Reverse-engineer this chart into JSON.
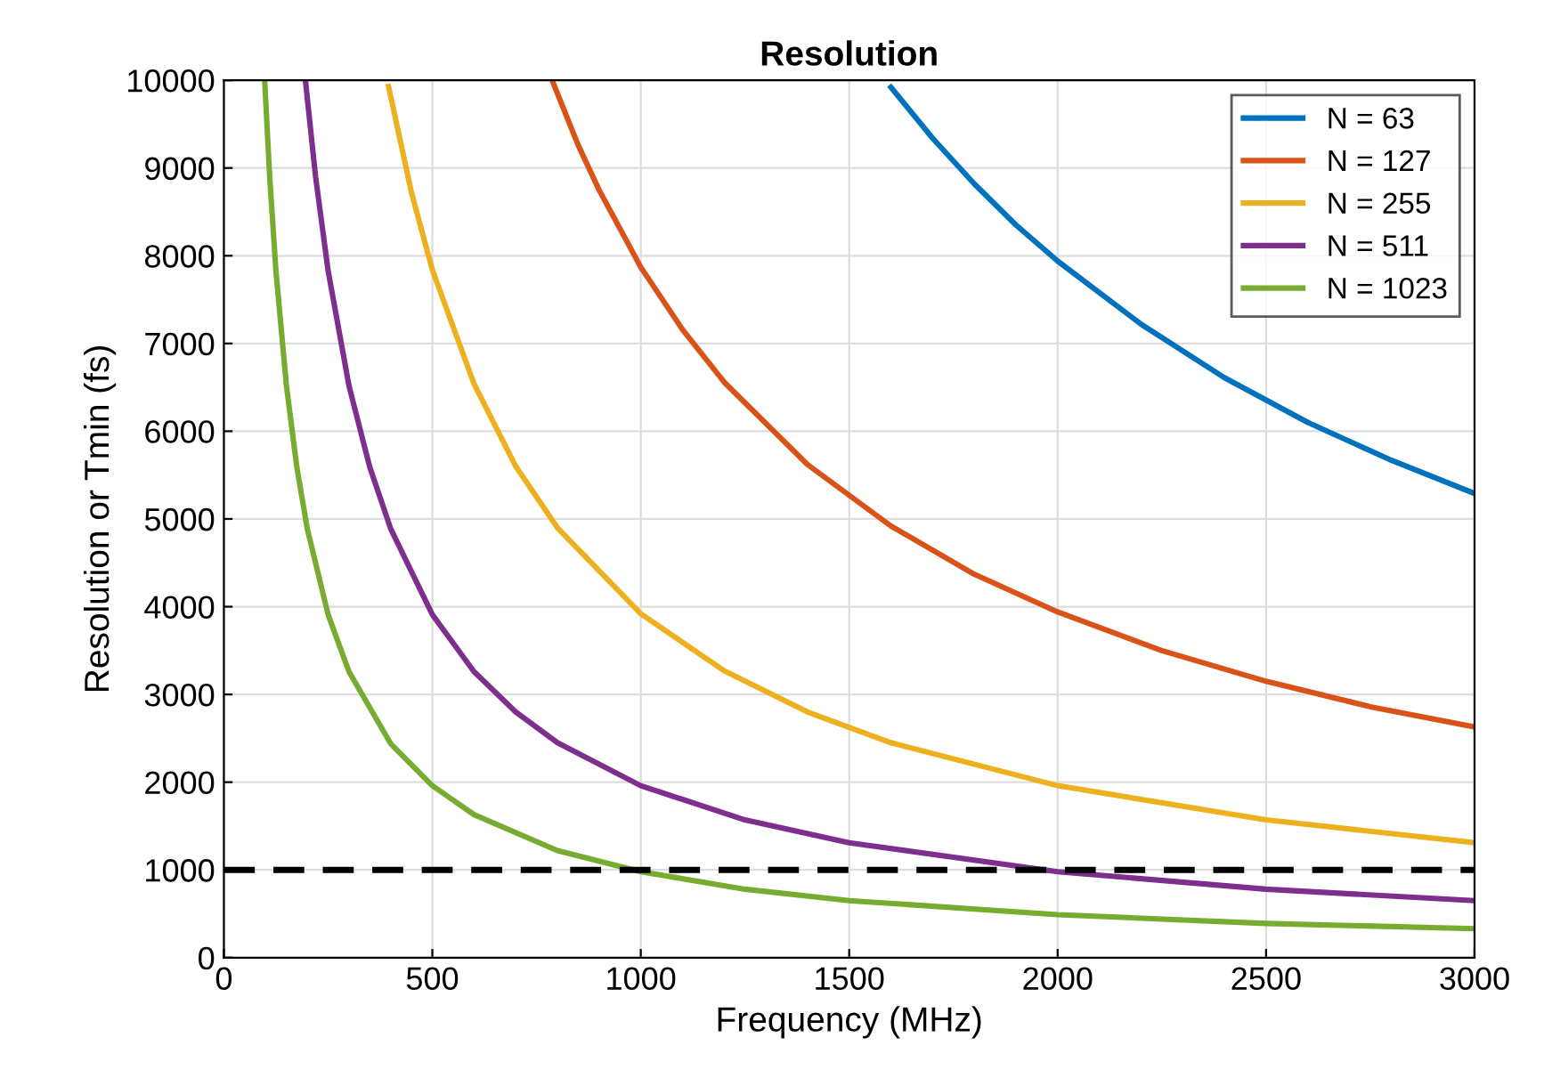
{
  "chart_data": {
    "type": "line",
    "title": "Resolution",
    "xlabel": "Frequency (MHz)",
    "ylabel": "Resolution or Tmin (fs)",
    "xlim": [
      0,
      3000
    ],
    "ylim": [
      0,
      10000
    ],
    "xticks": [
      0,
      500,
      1000,
      1500,
      2000,
      2500,
      3000
    ],
    "yticks": [
      0,
      1000,
      2000,
      3000,
      4000,
      5000,
      6000,
      7000,
      8000,
      9000,
      10000
    ],
    "grid": true,
    "legend": "top right",
    "marker": "none",
    "line_style": "solid",
    "series": [
      {
        "name": "N = 63",
        "color": "#0072bd",
        "x": [
          1600,
          1700,
          1800,
          1900,
          2000,
          2200,
          2400,
          2600,
          2800,
          3000
        ],
        "values": [
          9920,
          9340,
          8820,
          8350,
          7940,
          7220,
          6610,
          6100,
          5670,
          5290
        ]
      },
      {
        "name": "N = 127",
        "color": "#d95319",
        "x": [
          790,
          850,
          900,
          1000,
          1100,
          1200,
          1400,
          1600,
          1800,
          2000,
          2250,
          2500,
          2750,
          3000
        ],
        "values": [
          9970,
          9260,
          8750,
          7870,
          7160,
          6560,
          5620,
          4920,
          4370,
          3940,
          3500,
          3150,
          2860,
          2630
        ]
      },
      {
        "name": "N = 255",
        "color": "#edb120",
        "x": [
          395,
          450,
          500,
          600,
          700,
          800,
          1000,
          1200,
          1400,
          1600,
          2000,
          2500,
          3000
        ],
        "values": [
          9930,
          8720,
          7840,
          6540,
          5600,
          4900,
          3920,
          3270,
          2800,
          2450,
          1960,
          1570,
          1310
        ]
      },
      {
        "name": "N = 511",
        "color": "#7e2f8e",
        "x": [
          196,
          220,
          250,
          300,
          350,
          400,
          500,
          600,
          700,
          800,
          1000,
          1250,
          1500,
          2000,
          2500,
          3000
        ],
        "values": [
          9980,
          8900,
          7830,
          6520,
          5590,
          4890,
          3910,
          3260,
          2800,
          2450,
          1960,
          1570,
          1310,
          980,
          780,
          650
        ]
      },
      {
        "name": "N = 1023",
        "color": "#77ac30",
        "x": [
          98,
          110,
          125,
          150,
          175,
          200,
          250,
          300,
          400,
          500,
          600,
          800,
          1000,
          1250,
          1500,
          2000,
          2500,
          3000
        ],
        "values": [
          9980,
          8890,
          7820,
          6520,
          5590,
          4890,
          3910,
          3260,
          2440,
          1960,
          1630,
          1220,
          980,
          780,
          650,
          490,
          390,
          330
        ]
      }
    ],
    "ref_lines": [
      {
        "axis": "y",
        "value": 1000,
        "label": null,
        "color": "#000000",
        "line_style": "dashed"
      }
    ]
  }
}
